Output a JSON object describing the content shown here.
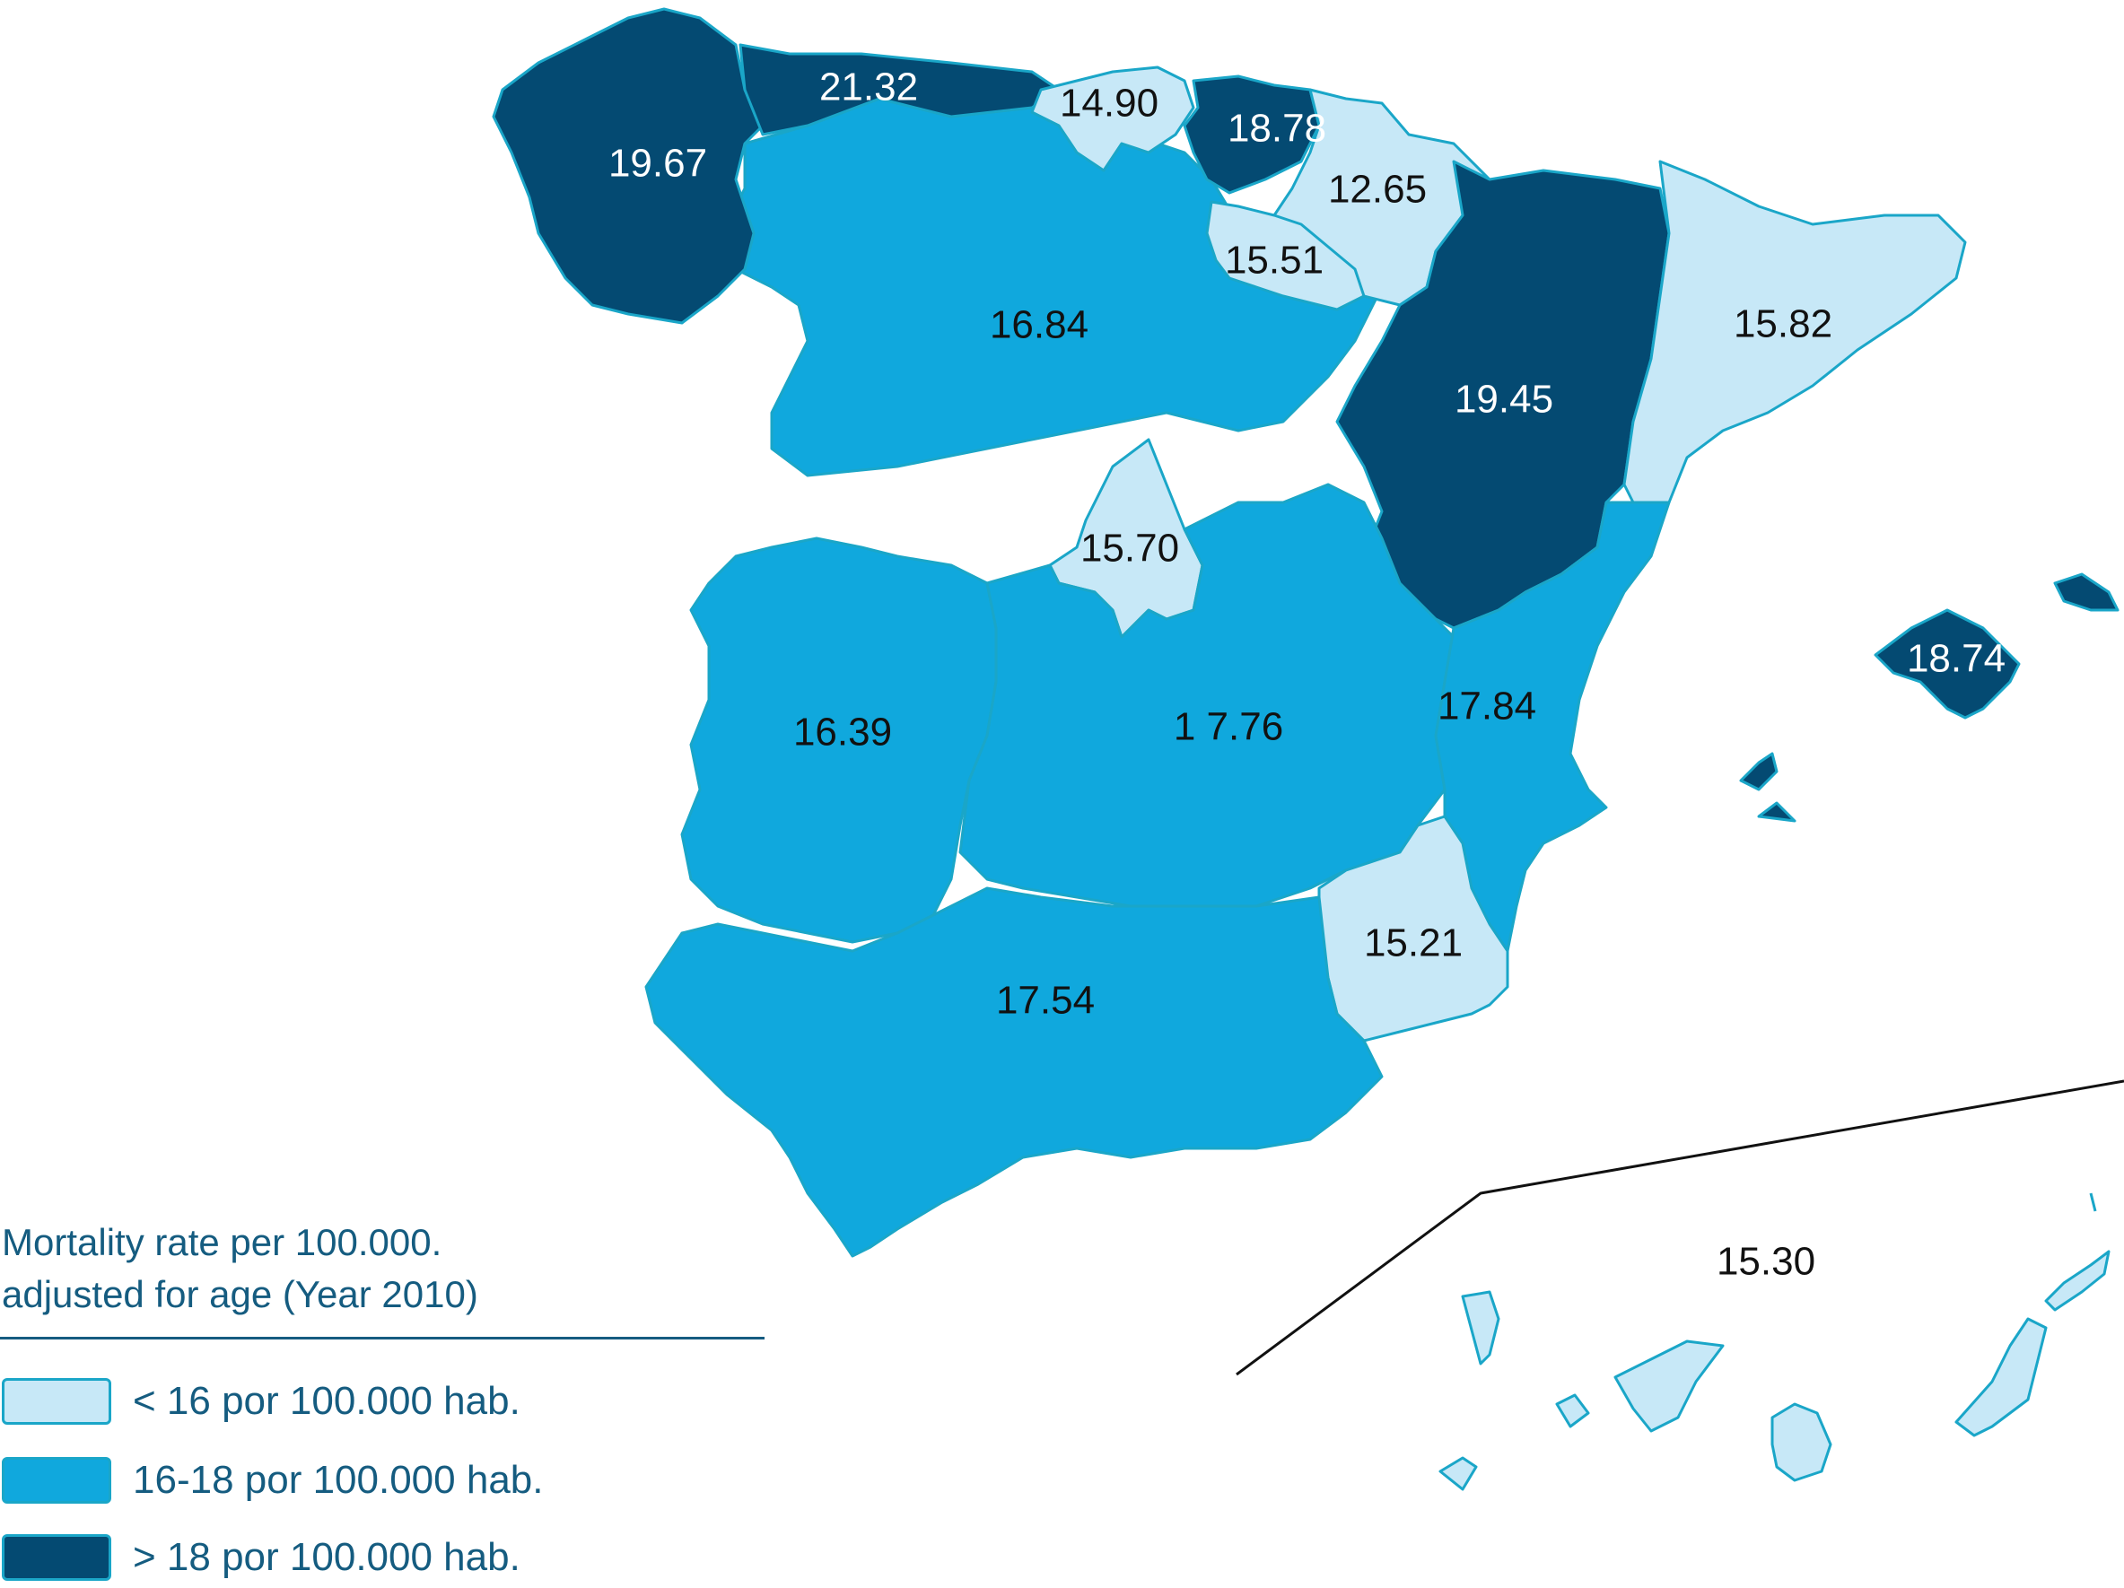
{
  "colors": {
    "low": "#c7e8f7",
    "mid": "#10a8dd",
    "high": "#044a72",
    "border": "#1aa6c8",
    "text_dark": "#111111",
    "text_light": "#ffffff",
    "legend_text": "#155c80"
  },
  "legend": {
    "title_line1": "Mortality rate per 100.000.",
    "title_line2": "adjusted for age (Year 2010)",
    "items": [
      {
        "label": "< 16 por 100.000 hab.",
        "class": "low"
      },
      {
        "label": "16-18 por 100.000 hab.",
        "class": "mid"
      },
      {
        "label": "> 18 por 100.000 hab.",
        "class": "high"
      }
    ]
  },
  "regions": [
    {
      "id": "galicia",
      "value": "19.67",
      "class": "high"
    },
    {
      "id": "asturias",
      "value": "21.32",
      "class": "high"
    },
    {
      "id": "cantabria",
      "value": "14.90",
      "class": "low"
    },
    {
      "id": "pais-vasco",
      "value": "18.78",
      "class": "high"
    },
    {
      "id": "navarra",
      "value": "12.65",
      "class": "low"
    },
    {
      "id": "la-rioja",
      "value": "15.51",
      "class": "low"
    },
    {
      "id": "aragon",
      "value": "19.45",
      "class": "high"
    },
    {
      "id": "cataluna",
      "value": "15.82",
      "class": "low"
    },
    {
      "id": "castilla-leon",
      "value": "16.84",
      "class": "mid"
    },
    {
      "id": "madrid",
      "value": "15.70",
      "class": "low"
    },
    {
      "id": "extremadura",
      "value": "16.39",
      "class": "mid"
    },
    {
      "id": "castilla-la-mancha",
      "value": "1 7.76",
      "class": "mid"
    },
    {
      "id": "valencia",
      "value": "17.84",
      "class": "mid"
    },
    {
      "id": "murcia",
      "value": "15.21",
      "class": "low"
    },
    {
      "id": "andalucia",
      "value": "17.54",
      "class": "mid"
    },
    {
      "id": "baleares",
      "value": "18.74",
      "class": "high"
    },
    {
      "id": "canarias",
      "value": "15.30",
      "class": "low"
    }
  ]
}
